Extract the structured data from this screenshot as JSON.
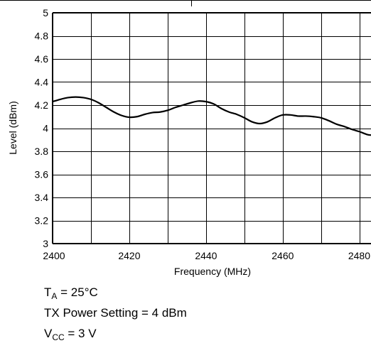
{
  "chart_data": {
    "type": "line",
    "xlabel": "Frequency (MHz)",
    "ylabel": "Level (dBm)",
    "xlim": [
      2400,
      2483
    ],
    "ylim": [
      3,
      5
    ],
    "x_ticks": [
      2400,
      2420,
      2440,
      2460,
      2480
    ],
    "y_ticks": [
      3,
      3.2,
      3.4,
      3.6,
      3.8,
      4,
      4.2,
      4.4,
      4.6,
      4.8,
      5
    ],
    "y_tick_labels": [
      "3",
      "3.2",
      "3.4",
      "3.6",
      "3.8",
      "4",
      "4.2",
      "4.4",
      "4.6",
      "4.8",
      "5"
    ],
    "x_tick_labels": [
      "2400",
      "2420",
      "2440",
      "2460",
      "2480"
    ],
    "grid": true,
    "series": [
      {
        "x": [
          2400,
          2402,
          2404,
          2406,
          2408,
          2410,
          2412,
          2414,
          2416,
          2418,
          2420,
          2422,
          2424,
          2426,
          2428,
          2430,
          2432,
          2434,
          2436,
          2438,
          2440,
          2442,
          2444,
          2446,
          2448,
          2450,
          2452,
          2454,
          2456,
          2458,
          2460,
          2462,
          2464,
          2466,
          2468,
          2470,
          2472,
          2474,
          2476,
          2478,
          2480,
          2482,
          2483
        ],
        "y": [
          4.23,
          4.25,
          4.265,
          4.27,
          4.265,
          4.25,
          4.22,
          4.18,
          4.14,
          4.11,
          4.095,
          4.1,
          4.12,
          4.135,
          4.14,
          4.155,
          4.18,
          4.2,
          4.22,
          4.235,
          4.23,
          4.21,
          4.17,
          4.14,
          4.12,
          4.09,
          4.055,
          4.04,
          4.055,
          4.09,
          4.115,
          4.115,
          4.105,
          4.105,
          4.1,
          4.09,
          4.065,
          4.035,
          4.015,
          3.99,
          3.97,
          3.945,
          3.94
        ]
      }
    ],
    "line_color": "#000000"
  },
  "conditions": {
    "ta_main": "T",
    "ta_sub": "A",
    "ta_rest": " = 25°C",
    "tx_power": "TX Power Setting = 4 dBm",
    "vcc_main": "V",
    "vcc_sub": "CC",
    "vcc_rest": " = 3 V"
  }
}
